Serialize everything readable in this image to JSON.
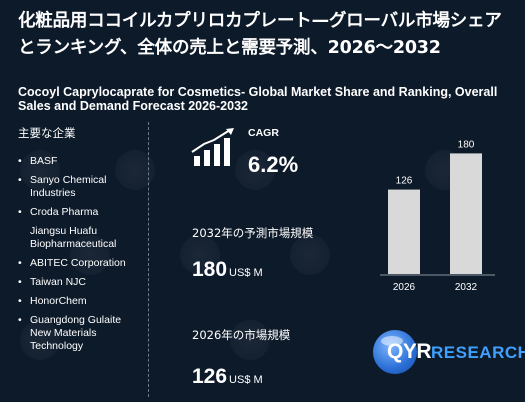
{
  "title_jp": "化粧品用ココイルカプリロカプレート—グローバル市場シェアとランキング、全体の売上と需要予測、2026～2032",
  "title_en": "Cocoyl Caprylocaprate for Cosmetics- Global Market Share and Ranking, Overall Sales and Demand Forecast 2026-2032",
  "sidebar": {
    "heading": "主要な企業",
    "companies": [
      {
        "name": "BASF",
        "bullet": true
      },
      {
        "name": "Sanyo Chemical Industries",
        "bullet": true
      },
      {
        "name": "Croda Pharma",
        "bullet": true
      },
      {
        "name": "Jiangsu Huafu Biopharmaceutical",
        "bullet": false
      },
      {
        "name": "ABITEC Corporation",
        "bullet": true
      },
      {
        "name": "Taiwan NJC",
        "bullet": true
      },
      {
        "name": "HonorChem",
        "bullet": true
      },
      {
        "name": "Guangdong Gulaite New Materials Technology",
        "bullet": true
      }
    ]
  },
  "cagr": {
    "label": "CAGR",
    "value": "6.2%",
    "icon": "growth-chart-icon"
  },
  "forecast": {
    "label": "2032年の予測市場規模",
    "value": "180",
    "unit": "US$ M"
  },
  "current": {
    "label": "2026年の市場規模",
    "value": "126",
    "unit": "US$ M"
  },
  "chart_data": {
    "type": "bar",
    "categories": [
      "2026",
      "2032"
    ],
    "values": [
      126,
      180
    ],
    "ylim": [
      0,
      200
    ],
    "bar_color": "#d9d9d9",
    "axis_color": "#8a95a3"
  },
  "brand": {
    "qyr": "QYR",
    "research": "RESEARCH",
    "accent": "#3fa0ff"
  }
}
